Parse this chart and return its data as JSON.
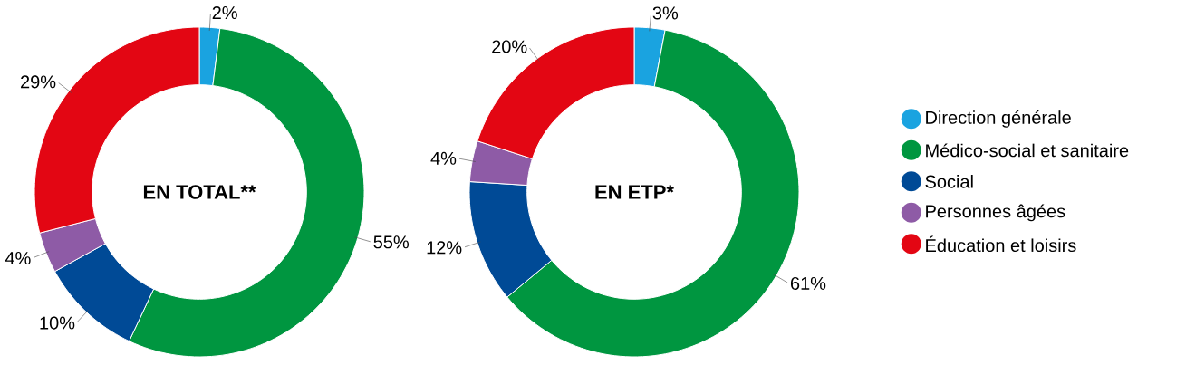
{
  "chart_data": [
    {
      "type": "donut",
      "title": "EN TOTAL**",
      "categories": [
        null,
        null,
        null,
        null,
        null
      ],
      "values": [
        2,
        55,
        10,
        4,
        29
      ],
      "value_labels": [
        "2%",
        "55%",
        "10%",
        "4%",
        "29%"
      ],
      "colors": [
        "#1aa3e0",
        "#009640",
        "#004a96",
        "#8e5ba6",
        "#e30613"
      ],
      "legend": false
    },
    {
      "type": "donut",
      "title": "EN ETP*",
      "categories": [
        "Direction générale",
        "Médico-social et sanitaire",
        "Social",
        "Personnes âgées",
        "Éducation et loisirs"
      ],
      "values": [
        3,
        61,
        12,
        4,
        20
      ],
      "value_labels": [
        "3%",
        "61%",
        "12%",
        "4%",
        "20%"
      ],
      "colors": [
        "#1aa3e0",
        "#009640",
        "#004a96",
        "#8e5ba6",
        "#e30613"
      ],
      "legend": "right"
    }
  ]
}
